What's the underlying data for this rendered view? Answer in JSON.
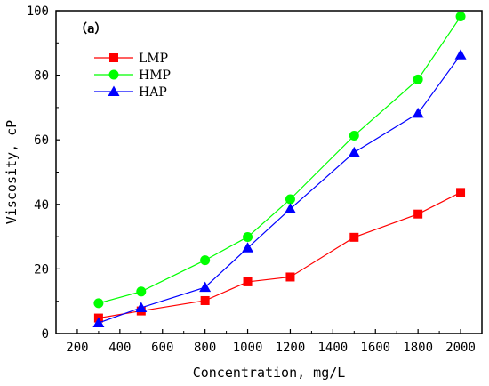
{
  "chart_data": {
    "type": "line",
    "panel_label": "（a）",
    "xlabel": "Concentration, mg/L",
    "ylabel": "Viscosity, cP",
    "xlim": [
      100,
      2100
    ],
    "ylim": [
      0,
      100
    ],
    "xticks": [
      200,
      400,
      600,
      800,
      1000,
      1200,
      1400,
      1600,
      1800,
      2000
    ],
    "yticks": [
      0,
      20,
      40,
      60,
      80,
      100
    ],
    "grid": false,
    "legend_position": "top-left",
    "x": [
      300,
      500,
      800,
      1000,
      1200,
      1500,
      1800,
      2000
    ],
    "series": [
      {
        "name": "LMP",
        "color": "#ff0000",
        "marker": "square",
        "values": [
          4.8,
          7.0,
          10.2,
          16.0,
          17.5,
          29.8,
          37.0,
          43.7
        ]
      },
      {
        "name": "HMP",
        "color": "#00ff00",
        "marker": "circle",
        "values": [
          9.4,
          13.0,
          22.7,
          29.9,
          41.6,
          61.3,
          78.7,
          98.2
        ]
      },
      {
        "name": "HAP",
        "color": "#0000ff",
        "marker": "triangle",
        "values": [
          3.3,
          8.0,
          14.3,
          26.5,
          38.6,
          56.1,
          68.2,
          86.3
        ]
      }
    ]
  }
}
